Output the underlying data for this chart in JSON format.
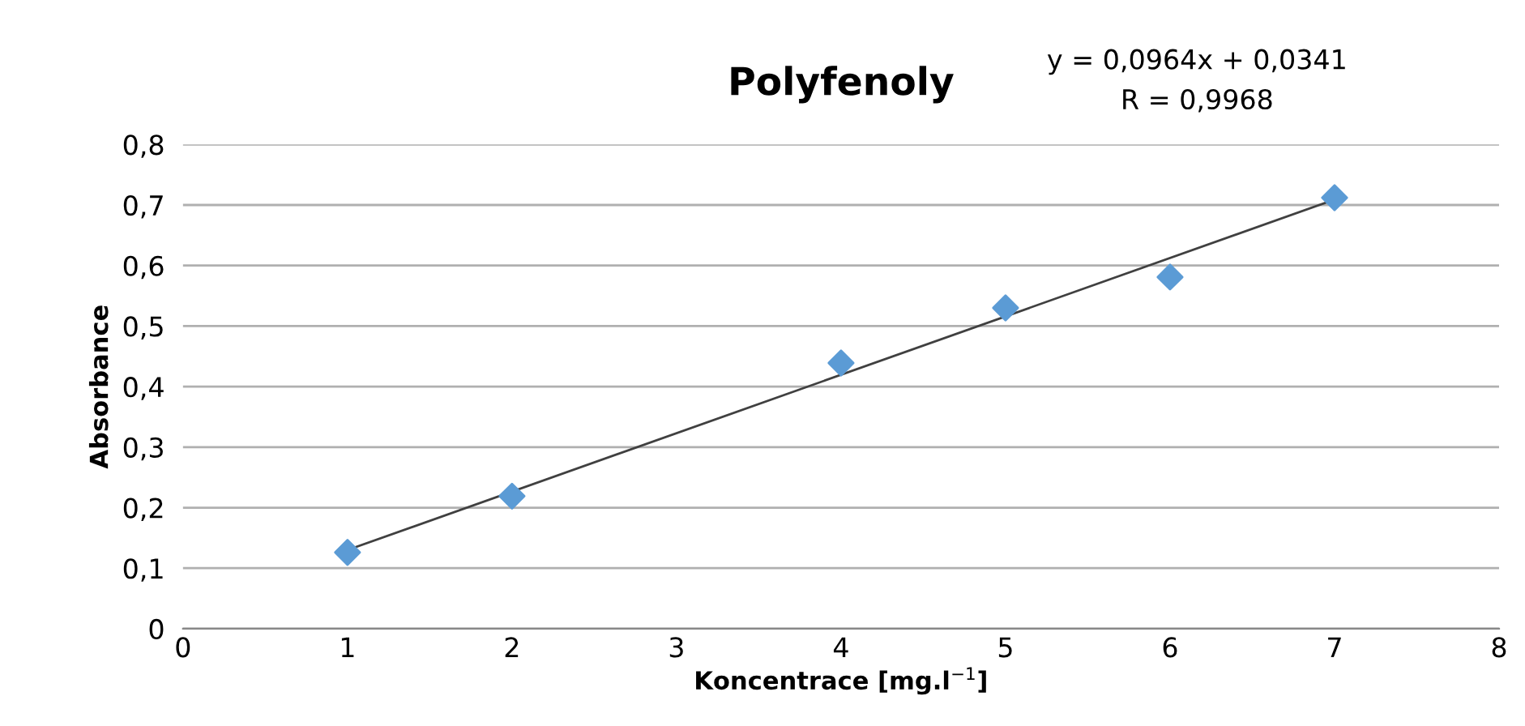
{
  "chart_data": {
    "type": "scatter",
    "title": "Polyfenoly",
    "xlabel": "Koncentrace [mg.l$^{−1}$]",
    "ylabel": "Absorbance",
    "annotations": [
      "y = 0,0964x + 0,0341",
      "R = 0,9968"
    ],
    "series": [
      {
        "color": "#5b9bd5",
        "marker": "diamond",
        "x": [
          1,
          2,
          4,
          5,
          6,
          7
        ],
        "values": [
          0.126,
          0.219,
          0.439,
          0.53,
          0.581,
          0.712
        ]
      },
      {
        "type": "line",
        "color": "#404040",
        "marker": "none",
        "x": [
          1,
          7
        ],
        "values": [
          0.13,
          0.709
        ]
      }
    ],
    "xlim": [
      0,
      8
    ],
    "xticks": [
      0,
      1,
      2,
      3,
      4,
      5,
      6,
      7,
      8
    ],
    "ylim": [
      0,
      0.8
    ],
    "yticks": [
      {
        "value": 0,
        "label": "0"
      },
      {
        "value": 0.1,
        "label": "0,1"
      },
      {
        "value": 0.2,
        "label": "0,2"
      },
      {
        "value": 0.3,
        "label": "0,3"
      },
      {
        "value": 0.4,
        "label": "0,4"
      },
      {
        "value": 0.5,
        "label": "0,5"
      },
      {
        "value": 0.6,
        "label": "0,6"
      },
      {
        "value": 0.7,
        "label": "0,7"
      },
      {
        "value": 0.8,
        "label": "0,8"
      }
    ],
    "grid": "y",
    "legend": false
  }
}
